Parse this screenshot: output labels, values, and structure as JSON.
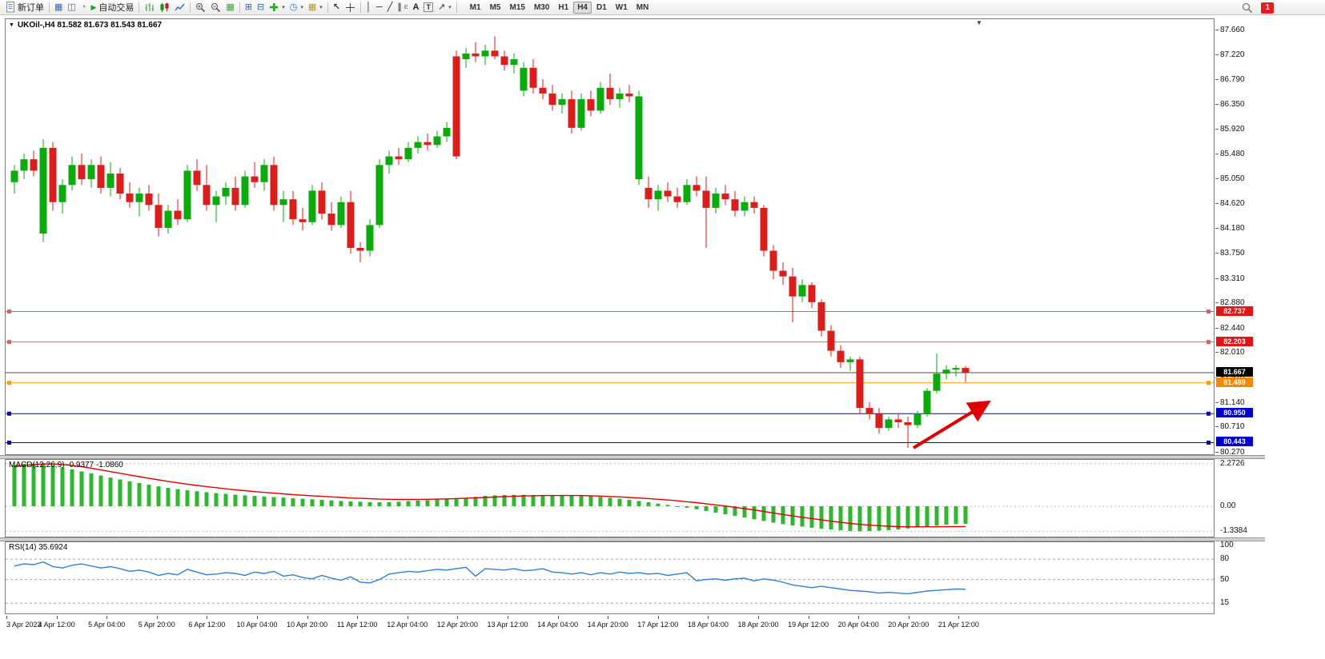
{
  "toolbar": {
    "new_order_label": "新订单",
    "autotrading_label": "自动交易",
    "timeframes": [
      "M1",
      "M5",
      "M15",
      "M30",
      "H1",
      "H4",
      "D1",
      "W1",
      "MN"
    ],
    "active_timeframe": "H4",
    "notification_count": "1",
    "text_tool_label": "A",
    "textbox_tool_label": "T",
    "channel_tool_label": "E"
  },
  "icons": {
    "collapse": "▼",
    "market_watch": "▦",
    "data_window": "◫",
    "navigator": "◔",
    "play": "▶",
    "tile_grid": "▦",
    "window_tile": "⊞",
    "window_cascade": "⊟",
    "clock": "◷",
    "template": "▦",
    "cursor": "↖",
    "vline": "│",
    "hline": "─",
    "trendline": "╱",
    "channel": "∥",
    "arrow_tool": "↗",
    "chevron": "▾",
    "shift_marker": "▼"
  },
  "colors": {
    "bull": "#0caa0c",
    "bear": "#d91e1e",
    "macd_hist": "#2fb52f",
    "macd_signal": "#e00000",
    "rsi_line": "#2f7fd6",
    "arrow": "#e00000"
  },
  "chart": {
    "symbol_info": "UKOil-,H4 81.582 81.673 81.543 81.667"
  },
  "chart_data": [
    {
      "type": "candlestick",
      "title": "UKOil-,H4",
      "ohlc_display": "81.582 81.673 81.543 81.667",
      "ylim": [
        80.24,
        87.85
      ],
      "price_ticks": [
        "87.660",
        "87.220",
        "86.790",
        "86.350",
        "85.920",
        "85.480",
        "85.050",
        "84.620",
        "84.180",
        "83.750",
        "83.310",
        "82.880",
        "82.440",
        "82.010",
        "81.570",
        "81.140",
        "80.710",
        "80.270"
      ],
      "levels": [
        {
          "value": 82.737,
          "label": "82.737",
          "color": "#ff5252",
          "tag_bg": "#e01515",
          "current": false
        },
        {
          "value": 82.203,
          "label": "82.203",
          "color": "#ff5252",
          "tag_bg": "#e01515",
          "current": false
        },
        {
          "value": 81.667,
          "label": "81.667",
          "color": "#4d4d4d",
          "tag_bg": "#000000",
          "current": true
        },
        {
          "value": 81.489,
          "label": "81.489",
          "color": "#ff9c00",
          "tag_bg": "#ef8a00",
          "current": false
        },
        {
          "value": 80.95,
          "label": "80.950",
          "color": "#0000e6",
          "tag_bg": "#0000cc",
          "current": false
        },
        {
          "value": 80.443,
          "label": "80.443",
          "color": "#0000e6",
          "tag_bg": "#0000cc",
          "current": false
        }
      ],
      "ohlc": [
        [
          85.0,
          85.3,
          84.8,
          85.2
        ],
        [
          85.2,
          85.5,
          85.05,
          85.4
        ],
        [
          85.4,
          85.55,
          85.1,
          85.2
        ],
        [
          84.1,
          85.75,
          83.95,
          85.6
        ],
        [
          85.6,
          85.7,
          84.5,
          84.65
        ],
        [
          84.65,
          85.05,
          84.45,
          84.95
        ],
        [
          84.95,
          85.45,
          84.85,
          85.3
        ],
        [
          85.3,
          85.5,
          84.95,
          85.05
        ],
        [
          85.05,
          85.4,
          84.9,
          85.3
        ],
        [
          85.3,
          85.45,
          84.8,
          84.9
        ],
        [
          84.9,
          85.35,
          84.75,
          85.15
        ],
        [
          85.15,
          85.25,
          84.7,
          84.8
        ],
        [
          84.8,
          85.0,
          84.55,
          84.65
        ],
        [
          84.65,
          84.9,
          84.4,
          84.8
        ],
        [
          84.8,
          84.95,
          84.5,
          84.6
        ],
        [
          84.6,
          84.8,
          84.05,
          84.2
        ],
        [
          84.2,
          84.6,
          84.1,
          84.5
        ],
        [
          84.5,
          84.7,
          84.25,
          84.35
        ],
        [
          84.35,
          85.3,
          84.3,
          85.2
        ],
        [
          85.2,
          85.4,
          84.85,
          84.95
        ],
        [
          84.95,
          85.3,
          84.5,
          84.6
        ],
        [
          84.6,
          84.85,
          84.3,
          84.75
        ],
        [
          84.75,
          85.0,
          84.6,
          84.9
        ],
        [
          84.9,
          85.1,
          84.5,
          84.6
        ],
        [
          84.6,
          85.2,
          84.55,
          85.1
        ],
        [
          85.1,
          85.35,
          84.9,
          85.0
        ],
        [
          85.0,
          85.4,
          84.85,
          85.3
        ],
        [
          85.3,
          85.45,
          84.5,
          84.6
        ],
        [
          84.6,
          84.85,
          84.3,
          84.7
        ],
        [
          84.7,
          84.85,
          84.25,
          84.35
        ],
        [
          84.35,
          84.55,
          84.15,
          84.3
        ],
        [
          84.3,
          84.95,
          84.25,
          84.85
        ],
        [
          84.85,
          85.0,
          84.35,
          84.45
        ],
        [
          84.45,
          84.65,
          84.15,
          84.25
        ],
        [
          84.25,
          84.75,
          84.2,
          84.65
        ],
        [
          84.65,
          84.85,
          83.75,
          83.85
        ],
        [
          83.85,
          83.95,
          83.6,
          83.8
        ],
        [
          83.8,
          84.35,
          83.7,
          84.25
        ],
        [
          84.25,
          85.4,
          84.2,
          85.3
        ],
        [
          85.3,
          85.55,
          85.15,
          85.45
        ],
        [
          85.45,
          85.6,
          85.3,
          85.4
        ],
        [
          85.4,
          85.7,
          85.35,
          85.6
        ],
        [
          85.6,
          85.8,
          85.5,
          85.7
        ],
        [
          85.7,
          85.85,
          85.55,
          85.65
        ],
        [
          85.65,
          85.9,
          85.6,
          85.8
        ],
        [
          85.8,
          86.05,
          85.7,
          85.95
        ],
        [
          87.2,
          87.3,
          85.4,
          85.45
        ],
        [
          87.15,
          87.35,
          87.0,
          87.25
        ],
        [
          87.25,
          87.45,
          87.1,
          87.2
        ],
        [
          87.2,
          87.4,
          87.05,
          87.3
        ],
        [
          87.3,
          87.55,
          87.15,
          87.2
        ],
        [
          87.2,
          87.3,
          86.95,
          87.05
        ],
        [
          87.05,
          87.25,
          86.9,
          87.15
        ],
        [
          86.6,
          87.1,
          86.5,
          87.0
        ],
        [
          87.0,
          87.15,
          86.55,
          86.65
        ],
        [
          86.65,
          86.8,
          86.45,
          86.55
        ],
        [
          86.55,
          86.7,
          86.25,
          86.35
        ],
        [
          86.35,
          86.55,
          86.2,
          86.45
        ],
        [
          86.45,
          86.6,
          85.85,
          85.95
        ],
        [
          85.95,
          86.55,
          85.9,
          86.45
        ],
        [
          86.45,
          86.6,
          86.15,
          86.25
        ],
        [
          86.25,
          86.75,
          86.2,
          86.65
        ],
        [
          86.65,
          86.9,
          86.35,
          86.45
        ],
        [
          86.45,
          86.65,
          86.3,
          86.55
        ],
        [
          86.55,
          86.7,
          86.4,
          86.5
        ],
        [
          85.05,
          86.6,
          84.95,
          86.5
        ],
        [
          84.9,
          85.1,
          84.55,
          84.7
        ],
        [
          84.7,
          84.95,
          84.5,
          84.85
        ],
        [
          84.85,
          85.0,
          84.65,
          84.75
        ],
        [
          84.75,
          84.9,
          84.55,
          84.65
        ],
        [
          84.65,
          85.05,
          84.6,
          84.95
        ],
        [
          84.95,
          85.1,
          84.75,
          84.85
        ],
        [
          84.85,
          85.1,
          83.85,
          84.55
        ],
        [
          84.55,
          84.9,
          84.45,
          84.8
        ],
        [
          84.8,
          84.95,
          84.6,
          84.7
        ],
        [
          84.7,
          84.85,
          84.4,
          84.5
        ],
        [
          84.5,
          84.75,
          84.4,
          84.65
        ],
        [
          84.65,
          84.75,
          84.45,
          84.55
        ],
        [
          84.55,
          84.6,
          83.7,
          83.8
        ],
        [
          83.8,
          83.9,
          83.3,
          83.45
        ],
        [
          83.45,
          83.6,
          83.2,
          83.35
        ],
        [
          83.35,
          83.5,
          82.55,
          83.0
        ],
        [
          83.0,
          83.3,
          82.9,
          83.2
        ],
        [
          83.2,
          83.25,
          82.8,
          82.9
        ],
        [
          82.9,
          82.95,
          82.3,
          82.4
        ],
        [
          82.4,
          82.5,
          81.95,
          82.05
        ],
        [
          82.05,
          82.15,
          81.75,
          81.85
        ],
        [
          81.85,
          81.95,
          81.7,
          81.9
        ],
        [
          81.9,
          81.95,
          80.95,
          81.05
        ],
        [
          81.05,
          81.15,
          80.85,
          80.95
        ],
        [
          80.95,
          81.05,
          80.6,
          80.7
        ],
        [
          80.7,
          80.9,
          80.65,
          80.85
        ],
        [
          80.85,
          80.95,
          80.7,
          80.8
        ],
        [
          80.8,
          80.9,
          80.35,
          80.75
        ],
        [
          80.75,
          81.0,
          80.7,
          80.95
        ],
        [
          80.95,
          81.4,
          80.9,
          81.35
        ],
        [
          81.35,
          82.0,
          81.3,
          81.65
        ],
        [
          81.65,
          81.8,
          81.55,
          81.72
        ],
        [
          81.72,
          81.8,
          81.6,
          81.75
        ],
        [
          81.75,
          81.78,
          81.5,
          81.667
        ]
      ]
    },
    {
      "type": "bar",
      "name": "MACD(12,26,9)",
      "label": "MACD(12,26,9) -0.9377 -1.0860",
      "values_display": [
        "-0.9377",
        "-1.0860"
      ],
      "ylim": [
        -1.626,
        2.478
      ],
      "axis_ticks": [
        {
          "label": "2.2726",
          "value": 2.2726
        },
        {
          "label": "0.00",
          "value": 0
        },
        {
          "label": "-1.3384",
          "value": -1.3384
        }
      ],
      "histogram": [
        2.2,
        2.26,
        2.27,
        2.25,
        2.18,
        2.08,
        1.97,
        1.86,
        1.75,
        1.64,
        1.53,
        1.43,
        1.33,
        1.24,
        1.15,
        1.06,
        0.98,
        0.91,
        0.85,
        0.8,
        0.75,
        0.7,
        0.66,
        0.62,
        0.58,
        0.55,
        0.52,
        0.49,
        0.46,
        0.43,
        0.4,
        0.37,
        0.34,
        0.31,
        0.28,
        0.26,
        0.24,
        0.22,
        0.21,
        0.22,
        0.24,
        0.27,
        0.3,
        0.33,
        0.36,
        0.39,
        0.42,
        0.45,
        0.5,
        0.55,
        0.58,
        0.6,
        0.61,
        0.61,
        0.6,
        0.59,
        0.58,
        0.57,
        0.57,
        0.58,
        0.55,
        0.5,
        0.45,
        0.4,
        0.34,
        0.28,
        0.21,
        0.14,
        0.07,
        0.0,
        -0.08,
        -0.16,
        -0.25,
        -0.34,
        -0.43,
        -0.52,
        -0.61,
        -0.7,
        -0.79,
        -0.88,
        -0.96,
        -1.03,
        -1.09,
        -1.15,
        -1.2,
        -1.25,
        -1.29,
        -1.32,
        -1.34,
        -1.33,
        -1.31,
        -1.28,
        -1.24,
        -1.19,
        -1.14,
        -1.09,
        -1.04,
        -0.99,
        -0.96,
        -0.94
      ],
      "signal": [
        2.1,
        2.18,
        2.23,
        2.26,
        2.26,
        2.23,
        2.18,
        2.11,
        2.03,
        1.94,
        1.85,
        1.76,
        1.67,
        1.58,
        1.49,
        1.41,
        1.33,
        1.25,
        1.18,
        1.11,
        1.05,
        0.99,
        0.93,
        0.88,
        0.83,
        0.78,
        0.74,
        0.7,
        0.66,
        0.62,
        0.59,
        0.56,
        0.53,
        0.5,
        0.47,
        0.44,
        0.42,
        0.4,
        0.38,
        0.37,
        0.36,
        0.36,
        0.36,
        0.37,
        0.38,
        0.39,
        0.41,
        0.43,
        0.45,
        0.47,
        0.49,
        0.51,
        0.53,
        0.55,
        0.56,
        0.57,
        0.57,
        0.57,
        0.57,
        0.57,
        0.56,
        0.54,
        0.52,
        0.5,
        0.47,
        0.44,
        0.41,
        0.37,
        0.33,
        0.29,
        0.24,
        0.19,
        0.13,
        0.07,
        0.01,
        -0.06,
        -0.13,
        -0.2,
        -0.28,
        -0.36,
        -0.44,
        -0.52,
        -0.59,
        -0.66,
        -0.73,
        -0.8,
        -0.86,
        -0.92,
        -0.97,
        -1.01,
        -1.04,
        -1.07,
        -1.09,
        -1.1,
        -1.1,
        -1.1,
        -1.1,
        -1.09,
        -1.09,
        -1.086
      ]
    },
    {
      "type": "line",
      "name": "RSI(14)",
      "label": "RSI(14) 35.6924",
      "value_display": "35.6924",
      "ylim": [
        0,
        105
      ],
      "levels": [
        80,
        50,
        15
      ],
      "axis_ticks": [
        {
          "label": "100",
          "value": 100
        },
        {
          "label": "80",
          "value": 80
        },
        {
          "label": "50",
          "value": 50
        },
        {
          "label": "15",
          "value": 15
        }
      ],
      "values": [
        70,
        73,
        72,
        76,
        69,
        67,
        71,
        73,
        70,
        67,
        69,
        66,
        62,
        64,
        61,
        56,
        59,
        57,
        65,
        61,
        57,
        58,
        60,
        59,
        56,
        61,
        59,
        62,
        55,
        57,
        53,
        51,
        56,
        52,
        49,
        54,
        46,
        45,
        50,
        58,
        60,
        62,
        61,
        63,
        65,
        64,
        66,
        68,
        55,
        66,
        65,
        64,
        66,
        63,
        64,
        66,
        61,
        60,
        58,
        60,
        57,
        60,
        58,
        61,
        59,
        60,
        58,
        59,
        56,
        58,
        60,
        48,
        50,
        51,
        49,
        51,
        52,
        48,
        51,
        49,
        46,
        42,
        40,
        38,
        40,
        38,
        36,
        34,
        33,
        32,
        30,
        31,
        30,
        29,
        31,
        33,
        34,
        35,
        36,
        35.7
      ]
    }
  ],
  "time_axis": [
    "3 Apr 2023",
    "4 Apr 12:00",
    "5 Apr 04:00",
    "5 Apr 20:00",
    "6 Apr 12:00",
    "10 Apr 04:00",
    "10 Apr 20:00",
    "11 Apr 12:00",
    "12 Apr 04:00",
    "12 Apr 20:00",
    "13 Apr 12:00",
    "14 Apr 04:00",
    "14 Apr 20:00",
    "17 Apr 12:00",
    "18 Apr 04:00",
    "18 Apr 20:00",
    "19 Apr 12:00",
    "20 Apr 04:00",
    "20 Apr 20:00",
    "21 Apr 12:00"
  ]
}
